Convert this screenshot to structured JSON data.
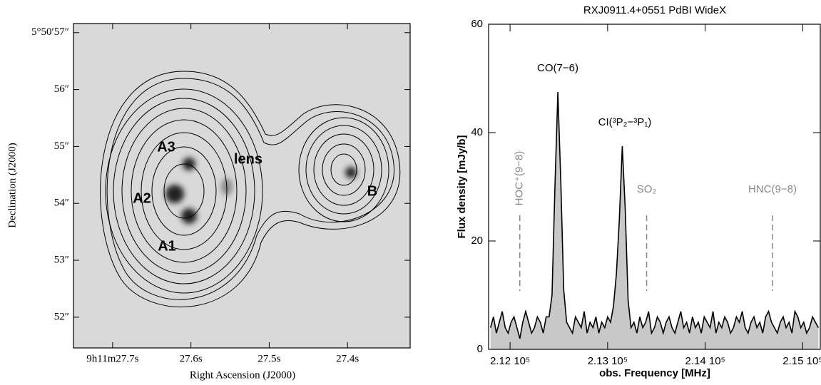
{
  "chart_data": [
    {
      "type": "map",
      "xlabel": "Right Ascension (J2000)",
      "ylabel": "Declination (J2000)",
      "xlim": [
        27.75,
        27.32
      ],
      "ylim": [
        51.46,
        57.16
      ],
      "xticks": [
        {
          "value": 27.7,
          "label": "9h11m27.7s"
        },
        {
          "value": 27.6,
          "label": "27.6s"
        },
        {
          "value": 27.5,
          "label": "27.5s"
        },
        {
          "value": 27.4,
          "label": "27.4s"
        }
      ],
      "yticks": [
        {
          "value": 57,
          "label": "5°50′57″"
        },
        {
          "value": 56,
          "label": "56″"
        },
        {
          "value": 55,
          "label": "55″"
        },
        {
          "value": 54,
          "label": "54″"
        },
        {
          "value": 53,
          "label": "53″"
        },
        {
          "value": 52,
          "label": "52″"
        }
      ],
      "annotations": [
        "A3",
        "A2",
        "A1",
        "lens",
        "B"
      ]
    },
    {
      "type": "area",
      "title": "RXJ0911.4+0551 PdBI WideX",
      "xlabel": "obs. Frequency [MHz]",
      "ylabel": "Flux density [mJy/b]",
      "color": "#c8c8c8",
      "xlim": [
        211780,
        215180
      ],
      "ylim": [
        0,
        60
      ],
      "xticks": [
        {
          "value": 212000,
          "label": "2.12 10⁵"
        },
        {
          "value": 213000,
          "label": "2.13 10⁵"
        },
        {
          "value": 214000,
          "label": "2.14 10⁵"
        },
        {
          "value": 215000,
          "label": "2.15 10⁵"
        }
      ],
      "yticks": [
        0,
        20,
        40,
        60
      ],
      "annotations": [
        "CO(7−6)",
        "CI(³P₂−³P₁)"
      ],
      "markers": [
        {
          "label": "HOC⁺(9−8)",
          "x": 212100
        },
        {
          "label": "SO₂",
          "x": 213400
        },
        {
          "label": "HNC(9−8)",
          "x": 214690
        }
      ],
      "x": [
        211800,
        211830,
        211860,
        211890,
        211920,
        211950,
        211980,
        212010,
        212040,
        212070,
        212100,
        212130,
        212160,
        212190,
        212220,
        212250,
        212280,
        212310,
        212340,
        212370,
        212400,
        212430,
        212460,
        212490,
        212520,
        212550,
        212580,
        212610,
        212640,
        212670,
        212700,
        212730,
        212760,
        212790,
        212820,
        212850,
        212880,
        212910,
        212940,
        212970,
        213000,
        213030,
        213060,
        213090,
        213120,
        213150,
        213180,
        213210,
        213240,
        213270,
        213300,
        213330,
        213360,
        213390,
        213420,
        213450,
        213480,
        213510,
        213540,
        213570,
        213600,
        213630,
        213660,
        213690,
        213720,
        213750,
        213780,
        213810,
        213840,
        213870,
        213900,
        213930,
        213960,
        213990,
        214020,
        214050,
        214080,
        214110,
        214140,
        214170,
        214200,
        214230,
        214260,
        214290,
        214320,
        214350,
        214380,
        214410,
        214440,
        214470,
        214500,
        214530,
        214560,
        214590,
        214620,
        214650,
        214680,
        214710,
        214740,
        214770,
        214800,
        214830,
        214860,
        214890,
        214920,
        214950,
        214980,
        215010,
        215040,
        215070,
        215100,
        215130,
        215160
      ],
      "values": [
        4,
        6,
        3,
        5,
        7,
        4,
        3,
        5,
        6,
        4,
        2,
        5,
        7,
        5,
        3,
        4,
        6,
        5,
        3,
        6,
        6,
        10,
        30,
        47.5,
        31,
        11,
        5,
        4,
        3,
        6,
        5,
        4,
        7,
        3,
        5,
        4,
        6,
        3,
        5,
        4,
        6,
        5,
        8,
        14,
        24,
        37.5,
        26,
        9,
        4,
        5,
        3,
        6,
        4,
        5,
        7,
        3,
        4,
        6,
        5,
        3,
        5,
        6,
        4,
        3,
        5,
        7,
        4,
        5,
        3,
        6,
        4,
        5,
        3,
        6,
        5,
        4,
        7,
        3,
        5,
        4,
        6,
        5,
        3,
        4,
        6,
        5,
        7,
        4,
        3,
        5,
        6,
        4,
        5,
        3,
        6,
        7,
        5,
        4,
        3,
        5,
        6,
        4,
        5,
        3,
        7,
        6,
        4,
        5,
        3,
        4,
        6,
        5,
        4
      ]
    }
  ]
}
